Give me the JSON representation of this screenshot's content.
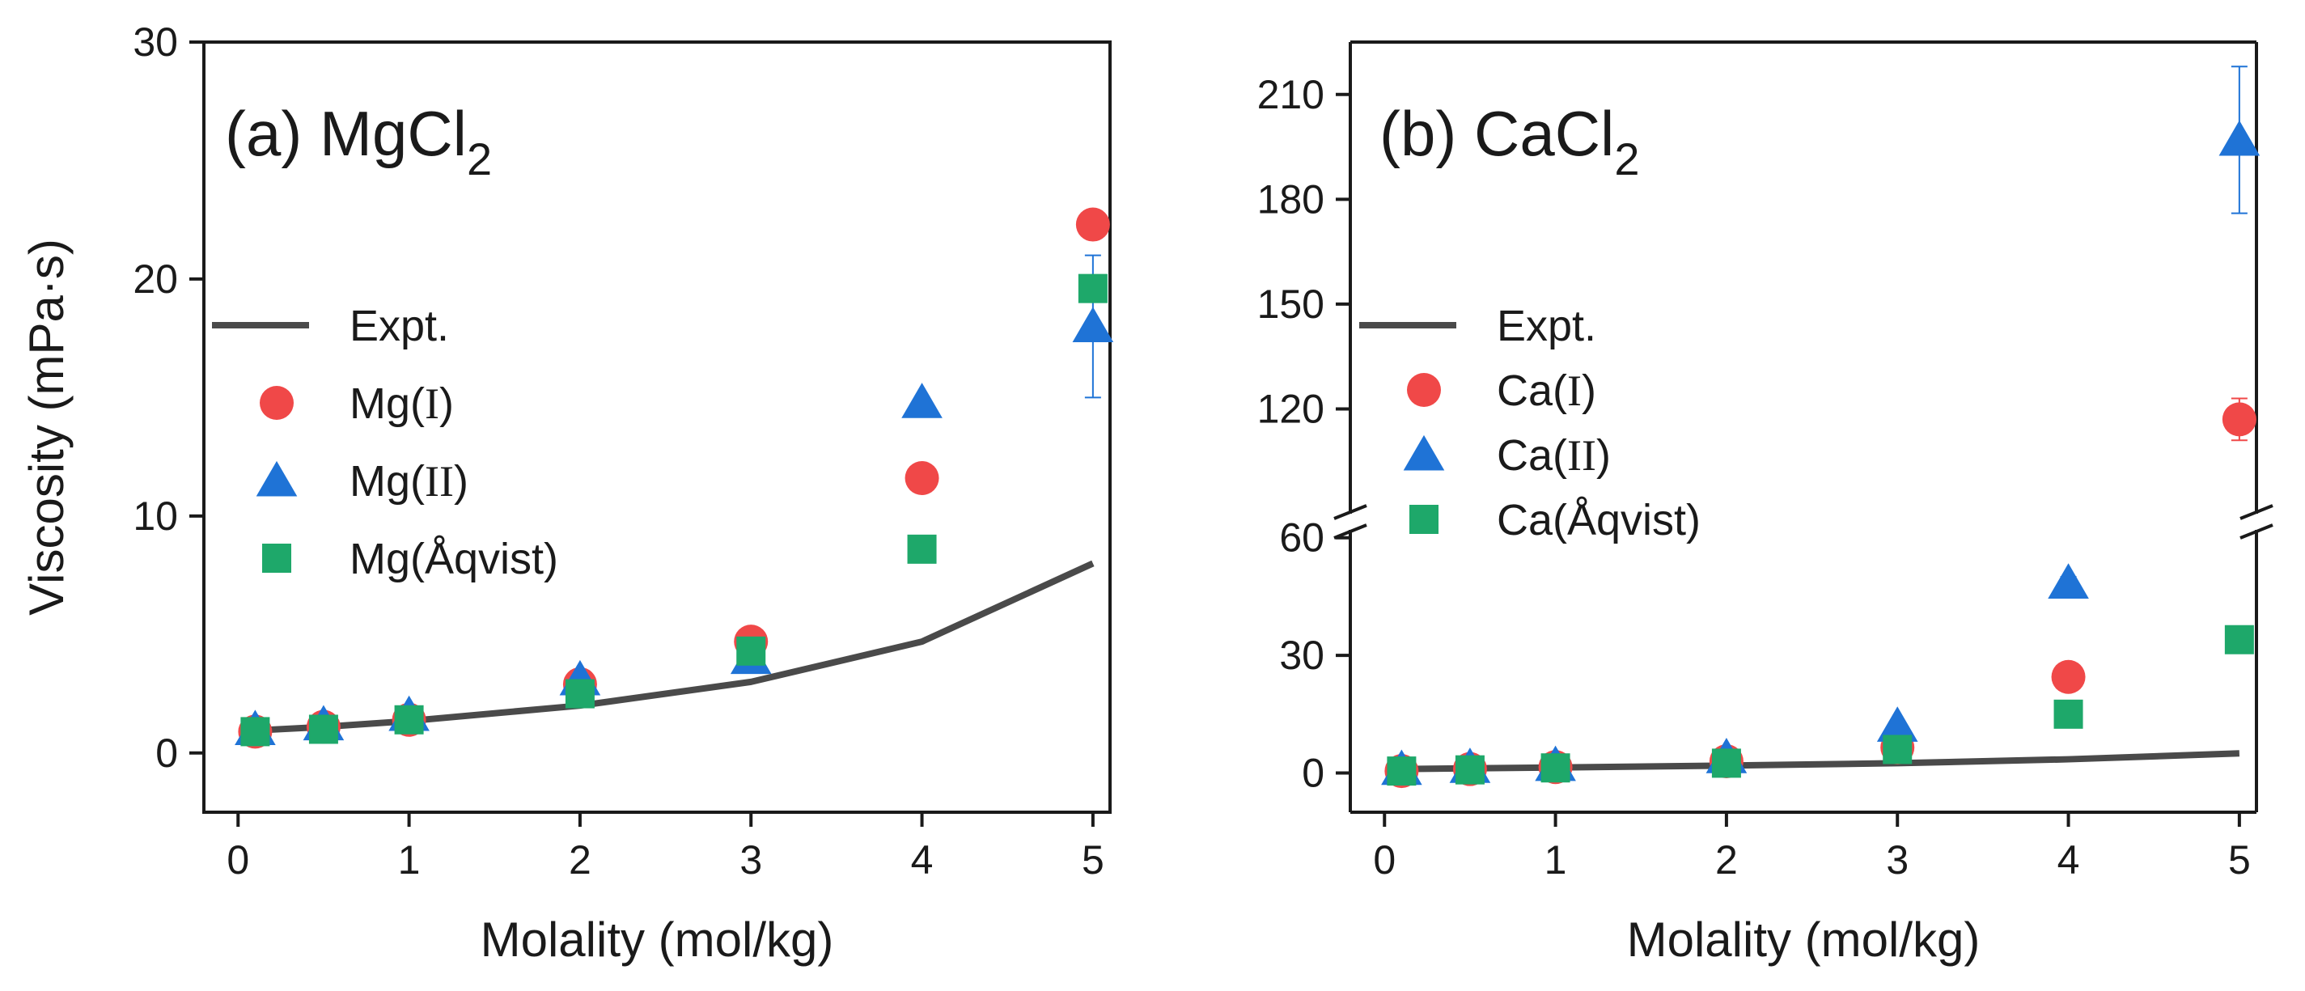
{
  "colors": {
    "expt": "#4a4a4a",
    "series_I": "#f04848",
    "series_II": "#1f73d6",
    "series_Aqvist": "#1ea86a",
    "axis": "#1a1a1a"
  },
  "chart_data": [
    {
      "type": "scatter",
      "panel": "(a) MgCl",
      "subscript": "2",
      "xlabel": "Molality (mol/kg)",
      "ylabel": "Viscosity (mPa·s)",
      "xlim": [
        -0.2,
        5.1
      ],
      "ylim": [
        -2.5,
        30
      ],
      "x_ticks": [
        "0",
        "1",
        "2",
        "3",
        "4",
        "5"
      ],
      "y_ticks": [
        "0",
        "10",
        "20",
        "30"
      ],
      "legend_position": "left",
      "legend": [
        {
          "key": "expt",
          "shape": "line",
          "label": "Expt.",
          "sub": ""
        },
        {
          "key": "I",
          "shape": "circle",
          "label": "Mg(",
          "sub": "I",
          "tail": ")"
        },
        {
          "key": "II",
          "shape": "triangle",
          "label": "Mg(",
          "sub": "II",
          "tail": ")"
        },
        {
          "key": "Aqvist",
          "shape": "square",
          "label": "Mg(Åqvist)",
          "sub": ""
        }
      ],
      "expt": {
        "x": [
          0.1,
          0.5,
          1,
          2,
          3,
          4,
          5
        ],
        "y": [
          0.95,
          1.1,
          1.35,
          2.0,
          3.0,
          4.7,
          8.0
        ]
      },
      "series": [
        {
          "name": "Mg(I)",
          "key": "I",
          "shape": "circle",
          "x": [
            0.1,
            0.5,
            1,
            2,
            3,
            4,
            5
          ],
          "y": [
            0.9,
            1.1,
            1.4,
            2.9,
            4.7,
            11.6,
            22.3
          ],
          "err": [
            0,
            0,
            0,
            0,
            0,
            0,
            0
          ]
        },
        {
          "name": "Mg(II)",
          "key": "II",
          "shape": "triangle",
          "x": [
            0.1,
            0.5,
            1,
            2,
            3,
            4,
            5
          ],
          "y": [
            1.0,
            1.2,
            1.6,
            3.1,
            4.0,
            14.8,
            18.0
          ],
          "err": [
            0,
            0,
            0,
            0,
            0,
            0,
            3.0
          ]
        },
        {
          "name": "Mg(Åqvist)",
          "key": "Aqvist",
          "shape": "square",
          "x": [
            0.1,
            0.5,
            1,
            2,
            3,
            4,
            5
          ],
          "y": [
            0.9,
            1.0,
            1.4,
            2.5,
            4.3,
            8.6,
            19.6
          ],
          "err": [
            0,
            0,
            0,
            0,
            0,
            0,
            0
          ]
        }
      ]
    },
    {
      "type": "scatter",
      "panel": "(b) CaCl",
      "subscript": "2",
      "xlabel": "Molality (mol/kg)",
      "ylabel": "",
      "xlim": [
        -0.2,
        5.1
      ],
      "ylim_lower": [
        -10,
        62
      ],
      "ylim_upper": [
        90,
        225
      ],
      "axis_break": true,
      "x_ticks": [
        "0",
        "1",
        "2",
        "3",
        "4",
        "5"
      ],
      "y_ticks_lower": [
        "0",
        "30",
        "60"
      ],
      "y_ticks_upper": [
        "120",
        "150",
        "180",
        "210"
      ],
      "legend_position": "left",
      "legend": [
        {
          "key": "expt",
          "shape": "line",
          "label": "Expt.",
          "sub": ""
        },
        {
          "key": "I",
          "shape": "circle",
          "label": "Ca(",
          "sub": "I",
          "tail": ")"
        },
        {
          "key": "II",
          "shape": "triangle",
          "label": "Ca(",
          "sub": "II",
          "tail": ")"
        },
        {
          "key": "Aqvist",
          "shape": "square",
          "label": "Ca(Åqvist)",
          "sub": ""
        }
      ],
      "expt": {
        "x": [
          0.1,
          0.5,
          1,
          2,
          3,
          4,
          5
        ],
        "y": [
          1.0,
          1.2,
          1.4,
          1.9,
          2.5,
          3.5,
          5.0
        ]
      },
      "series": [
        {
          "name": "Ca(I)",
          "key": "I",
          "shape": "circle",
          "x": [
            0.1,
            0.5,
            1,
            2,
            3,
            4,
            5
          ],
          "y": [
            0.5,
            1.0,
            1.5,
            3.0,
            6.5,
            24.5,
            117.0
          ],
          "err": [
            0,
            0,
            0,
            0,
            0,
            0,
            6.0
          ]
        },
        {
          "name": "Ca(II)",
          "key": "II",
          "shape": "triangle",
          "x": [
            0.1,
            0.5,
            1,
            2,
            3,
            4,
            5
          ],
          "y": [
            1.0,
            1.5,
            2.0,
            4.0,
            12.0,
            48.5,
            197.0
          ],
          "err": [
            0,
            0,
            0,
            0,
            0,
            1.5,
            21.0
          ]
        },
        {
          "name": "Ca(Åqvist)",
          "key": "Aqvist",
          "shape": "square",
          "x": [
            0.1,
            0.5,
            1,
            2,
            3,
            4,
            5
          ],
          "y": [
            0.5,
            0.8,
            1.3,
            2.5,
            6.0,
            15.0,
            34.0
          ],
          "err": [
            0,
            0,
            0,
            0,
            0,
            0,
            0
          ]
        }
      ]
    }
  ]
}
